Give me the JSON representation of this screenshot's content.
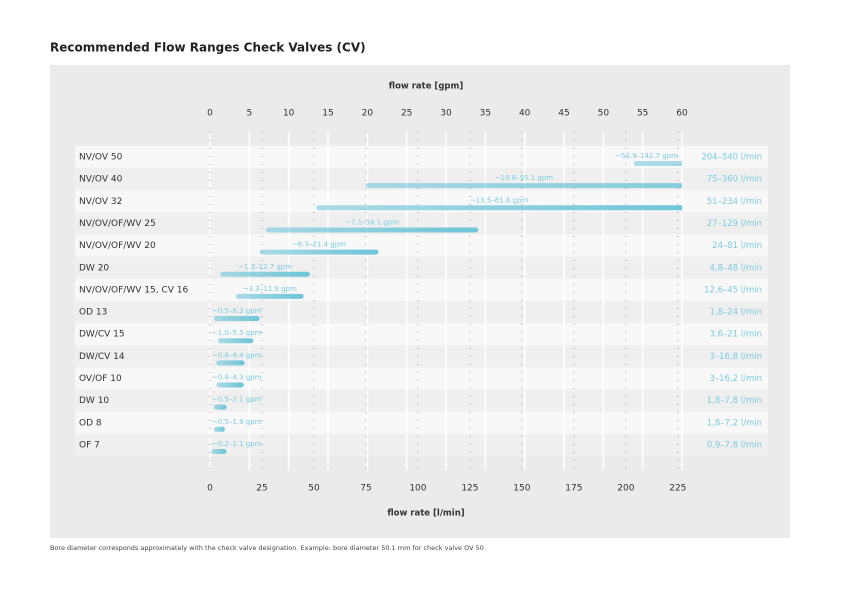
{
  "chart_data": {
    "type": "range_bar",
    "title": "Recommended Flow Ranges Check Valves (CV)",
    "x_label": "flow rate [gpm]",
    "x2_label": "flow rate [l/min]",
    "xlim": [
      0,
      60
    ],
    "xticks": [
      0,
      5,
      10,
      15,
      20,
      25,
      30,
      35,
      40,
      45,
      50,
      55,
      60
    ],
    "x2lim": [
      0,
      227
    ],
    "x2ticks": [
      0,
      25,
      50,
      75,
      100,
      125,
      150,
      175,
      200,
      225
    ],
    "color": "#6cc4d8",
    "categories": [
      "NV/OV 50",
      "NV/OV 40",
      "NV/OV 32",
      "NV/OV/OF/WV 25",
      "NV/OV/OF/WV 20",
      "DW 20",
      "NV/OV/OF/WV 15, CV 16",
      "OD 13",
      "DW/CV 15",
      "DW/CV 14",
      "OV/OF 10",
      "DW 10",
      "OD 8",
      "OF 7"
    ],
    "ranges": [
      [
        53.9,
        142.7
      ],
      [
        19.8,
        95.1
      ],
      [
        13.5,
        61.8
      ],
      [
        7.1,
        34.1
      ],
      [
        6.3,
        21.4
      ],
      [
        1.3,
        12.7
      ],
      [
        3.3,
        11.9
      ],
      [
        0.5,
        6.3
      ],
      [
        1.0,
        5.5
      ],
      [
        0.8,
        4.4
      ],
      [
        0.8,
        4.3
      ],
      [
        0.5,
        2.1
      ],
      [
        0.5,
        1.9
      ],
      [
        0.2,
        2.1
      ]
    ],
    "range_labels": [
      "~53.9–142.7 gpm",
      "~19.8–95.1 gpm",
      "~13.5–61.8 gpm",
      "~7.1–34.1 gpm",
      "~6.3–21.4 gpm",
      "~1.3–12.7 gpm",
      "~3.3–11.9 gpm",
      "~0.5–6.3 gpm",
      "~1.0–5.5 gpm",
      "~0.8–4.4 gpm",
      "~0.8–4.3 gpm",
      "~0.5–2.1 gpm",
      "~0.5–1.9 gpm",
      "~0.2–2.1 gpm"
    ],
    "x2_range_labels": [
      "204–540 l/min",
      "75–360 l/min",
      "51–234 l/min",
      "27–129 l/min",
      "24–81 l/min",
      "4,8–48 l/min",
      "12,6–45 l/min",
      "1,8–24 l/min",
      "3,6–21 l/min",
      "3–16,8 l/min",
      "3–16,2 l/min",
      "1,8–7,8 l/min",
      "1,8–7,2 l/min",
      "0,9–7,8 l/min"
    ],
    "note": "Bore diameter corresponds approximately with the check valve designation. Example: bore diameter 50.1 mm for check valve OV 50"
  }
}
